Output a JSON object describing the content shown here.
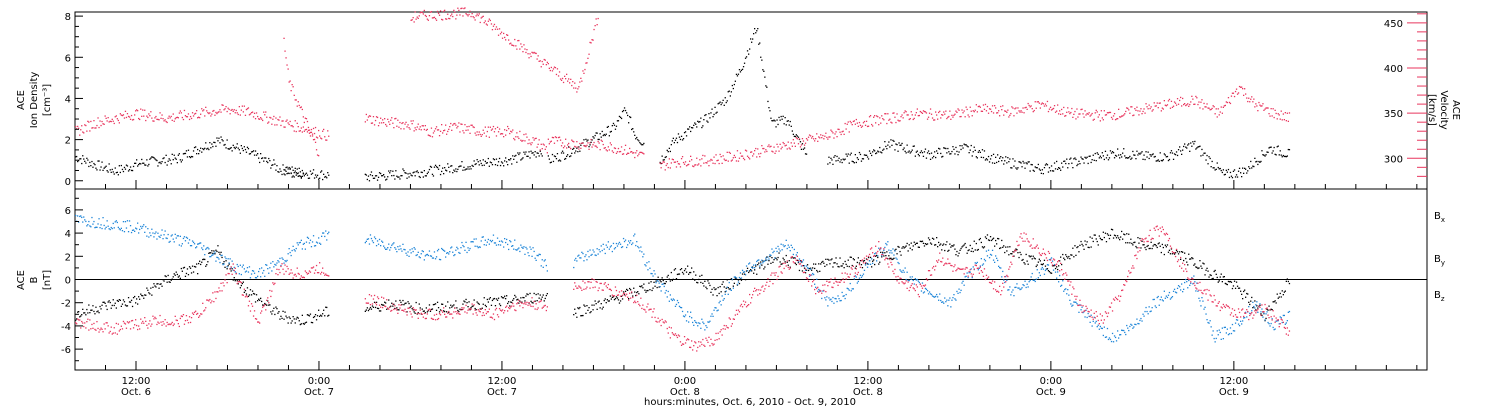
{
  "chart_data": [
    {
      "type": "scatter",
      "panel": "top",
      "ylabel_lines": [
        "ACE",
        "Ion Density",
        "[cm⁻³]"
      ],
      "ylabel2_lines": [
        "ACE",
        "Velocity",
        "[km/s]"
      ],
      "yticks": [
        "0",
        "2",
        "4",
        "6",
        "8"
      ],
      "yticks_right": [
        "300",
        "350",
        "400",
        "450"
      ],
      "ylim": [
        -0.4,
        8.2
      ],
      "ylim_right": [
        266,
        462
      ],
      "series": [
        {
          "color": "#000000",
          "axis": "left",
          "segments": [
            {
              "x": [
                0,
                4,
                8,
                13,
                20,
                28,
                34,
                39,
                40,
                45,
                50
              ],
              "y": [
                1.2,
                0.8,
                0.5,
                0.9,
                1.1,
                2.0,
                1.4,
                0.8,
                0.6,
                0.4,
                0.3
              ]
            },
            {
              "x": [
                41,
                45
              ],
              "y": [
                0.5,
                0.3
              ]
            },
            {
              "x": [
                57,
                62,
                66,
                70,
                75,
                80,
                84,
                88,
                92
              ],
              "y": [
                0.2,
                0.3,
                0.4,
                0.5,
                0.7,
                0.9,
                1.0,
                1.2,
                1.5
              ]
            },
            {
              "x": [
                93,
                96,
                100,
                103,
                106,
                108,
                109,
                110,
                112
              ],
              "y": [
                1.0,
                1.3,
                1.8,
                2.2,
                2.6,
                3.4,
                3.0,
                2.3,
                1.8
              ]
            },
            {
              "x": [
                115,
                118,
                124,
                128,
                131,
                134,
                137,
                140,
                144
              ],
              "y": [
                1.0,
                2.0,
                3.0,
                4.0,
                5.5,
                7.5,
                2.8,
                3.0,
                1.2
              ]
            },
            {
              "x": [
                148,
                155,
                160,
                168,
                175,
                182,
                186,
                190,
                198,
                205,
                210,
                215,
                220,
                226,
                230,
                235,
                239
              ],
              "y": [
                1.0,
                1.2,
                1.8,
                1.3,
                1.6,
                1.0,
                0.8,
                0.6,
                1.0,
                1.4,
                1.2,
                1.2,
                1.8,
                0.3,
                0.5,
                1.6,
                1.3
              ]
            }
          ]
        },
        {
          "color": "#e8365e",
          "axis": "right",
          "segments": [
            {
              "x": [
                0,
                4,
                8,
                12,
                18,
                24,
                30,
                34,
                38,
                41,
                44,
                47,
                50
              ],
              "y": [
                330,
                340,
                345,
                350,
                345,
                350,
                355,
                352,
                345,
                340,
                335,
                330,
                325
              ]
            },
            {
              "x": [
                41,
                42,
                48
              ],
              "y": [
                430,
                385,
                305
              ]
            },
            {
              "x": [
                57,
                62,
                66,
                70,
                75,
                80,
                85,
                90,
                93
              ],
              "y": [
                345,
                340,
                338,
                330,
                335,
                330,
                330,
                320,
                310
              ]
            },
            {
              "x": [
                93,
                96,
                100,
                104,
                108,
                110,
                112
              ],
              "y": [
                320,
                318,
                316,
                315,
                310,
                306,
                302
              ]
            },
            {
              "x": [
                115,
                118,
                124,
                130,
                136,
                142,
                148,
                154,
                160,
                166,
                172,
                178,
                184,
                190,
                196,
                202,
                206,
                210,
                215,
                220,
                225,
                229,
                232,
                236,
                239
              ],
              "y": [
                292,
                297,
                298,
                303,
                310,
                318,
                325,
                340,
                345,
                350,
                348,
                355,
                352,
                360,
                350,
                348,
                350,
                355,
                360,
                365,
                350,
                380,
                360,
                350,
                345
              ]
            },
            {
              "x": [
                66,
                67,
                78,
                80,
                99,
                103
              ],
              "y": [
                455,
                458,
                462,
                455,
                378,
                462
              ]
            }
          ]
        }
      ]
    },
    {
      "type": "scatter",
      "panel": "bottom",
      "ylabel_lines": [
        "ACE",
        "B",
        "[nT]"
      ],
      "yticks": [
        "-6",
        "-4",
        "-2",
        "0",
        "2",
        "4",
        "6"
      ],
      "ylim": [
        -7.8,
        7.8
      ],
      "legend": [
        "B",
        "B",
        "B"
      ],
      "legend_subs": [
        "x",
        "y",
        "z"
      ],
      "series": [
        {
          "name": "Bx",
          "color": "#000000",
          "segments": [
            {
              "x": [
                0,
                4,
                8,
                12,
                16,
                20,
                24,
                28,
                31,
                34,
                37,
                40,
                44,
                48,
                50
              ],
              "y": [
                -3.0,
                -2.4,
                -2.0,
                -1.8,
                -0.5,
                0.5,
                1.0,
                2.5,
                0.5,
                -1.0,
                -2.0,
                -3.0,
                -3.5,
                -3.0,
                -2.7
              ]
            },
            {
              "x": [
                57,
                62,
                68,
                74,
                80,
                86,
                90,
                93
              ],
              "y": [
                -2.5,
                -2.0,
                -2.5,
                -2.3,
                -2.0,
                -1.8,
                -1.5,
                -1.3
              ]
            },
            {
              "x": [
                98,
                104,
                110,
                116,
                120,
                126,
                132,
                138,
                144,
                150,
                156,
                162,
                168,
                174,
                180,
                186,
                192,
                198,
                204,
                210,
                216,
                222,
                228,
                234,
                239
              ],
              "y": [
                -2.8,
                -2.0,
                -1.0,
                0.0,
                1.0,
                -1.0,
                0.5,
                2.0,
                1.0,
                1.5,
                1.5,
                2.5,
                3.5,
                2.5,
                3.5,
                2.0,
                1.0,
                3.0,
                4.0,
                3.0,
                2.5,
                1.0,
                -0.5,
                -3.0,
                0.0
              ]
            }
          ]
        },
        {
          "name": "By",
          "color": "#1f86d8",
          "segments": [
            {
              "x": [
                0,
                4,
                8,
                12,
                16,
                20,
                24,
                28,
                32,
                36,
                40,
                44,
                48,
                50
              ],
              "y": [
                5.2,
                5.0,
                4.8,
                4.5,
                4.0,
                3.5,
                3.0,
                2.0,
                1.0,
                0.5,
                1.5,
                3.0,
                3.5,
                4.0
              ]
            },
            {
              "x": [
                57,
                62,
                66,
                70,
                74,
                78,
                82,
                86,
                90,
                93
              ],
              "y": [
                3.5,
                3.0,
                2.5,
                2.0,
                2.5,
                3.0,
                3.5,
                3.0,
                2.5,
                1.0
              ]
            },
            {
              "x": [
                98,
                102,
                106,
                110,
                113,
                116,
                120,
                124,
                128,
                132,
                136,
                140,
                144,
                148,
                152,
                156,
                160,
                164,
                168,
                172,
                176,
                180,
                184,
                188,
                192,
                196,
                200,
                204,
                208,
                212,
                216,
                220,
                224,
                228,
                232,
                236,
                239
              ],
              "y": [
                1.5,
                2.5,
                3.0,
                3.5,
                1.0,
                -1.0,
                -3.0,
                -4.0,
                -1.0,
                1.0,
                2.0,
                3.0,
                1.0,
                -2.0,
                -1.0,
                1.5,
                3.0,
                0.0,
                -1.0,
                -2.0,
                0.5,
                2.5,
                -1.0,
                0.0,
                1.5,
                -2.0,
                -3.5,
                -5.0,
                -4.0,
                -2.0,
                -1.0,
                0.0,
                -5.0,
                -4.0,
                -2.0,
                -4.0,
                -3.0
              ]
            }
          ]
        },
        {
          "name": "Bz",
          "color": "#e8365e",
          "segments": [
            {
              "x": [
                0,
                4,
                8,
                12,
                16,
                20,
                24,
                28,
                31,
                34,
                36,
                38,
                40,
                44,
                48,
                50
              ],
              "y": [
                -3.5,
                -4.0,
                -4.2,
                -3.8,
                -3.5,
                -3.6,
                -3.0,
                -1.0,
                1.0,
                -2.0,
                -3.5,
                -1.5,
                1.0,
                0.5,
                1.0,
                0.5
              ]
            },
            {
              "x": [
                57,
                62,
                66,
                70,
                74,
                78,
                82,
                86,
                90,
                93
              ],
              "y": [
                -1.5,
                -2.2,
                -2.8,
                -3.0,
                -2.8,
                -2.5,
                -3.0,
                -2.2,
                -2.0,
                -2.5
              ]
            },
            {
              "x": [
                98,
                102,
                106,
                110,
                114,
                118,
                122,
                126,
                130,
                134,
                138,
                142,
                146,
                150,
                154,
                158,
                162,
                166,
                170,
                174,
                178,
                182,
                186,
                190,
                194,
                198,
                202,
                206,
                210,
                214,
                218,
                222,
                226,
                230,
                234,
                239
              ],
              "y": [
                -0.5,
                -0.3,
                -1.0,
                -1.5,
                -3.0,
                -5.0,
                -5.8,
                -5.0,
                -3.0,
                -1.0,
                0.5,
                2.0,
                -1.0,
                0.0,
                1.0,
                3.0,
                0.0,
                -1.0,
                2.0,
                0.5,
                1.0,
                -1.0,
                4.0,
                2.5,
                1.0,
                -2.5,
                -3.5,
                -1.0,
                3.5,
                4.5,
                1.0,
                -1.0,
                -2.5,
                -3.0,
                -2.5,
                -4.5
              ]
            }
          ]
        }
      ]
    }
  ],
  "x_axis": {
    "xlim": [
      0,
      266
    ],
    "ticks": [
      {
        "x": 12,
        "time": "12:00",
        "date": "Oct. 6"
      },
      {
        "x": 48,
        "time": "0:00",
        "date": "Oct. 7"
      },
      {
        "x": 84,
        "time": "12:00",
        "date": "Oct. 7"
      },
      {
        "x": 120,
        "time": "0:00",
        "date": "Oct. 8"
      },
      {
        "x": 156,
        "time": "12:00",
        "date": "Oct. 8"
      },
      {
        "x": 192,
        "time": "0:00",
        "date": "Oct. 9"
      },
      {
        "x": 228,
        "time": "12:00",
        "date": "Oct. 9"
      }
    ],
    "xlabel": "hours:minutes, Oct.  6, 2010 - Oct.  9, 2010"
  }
}
